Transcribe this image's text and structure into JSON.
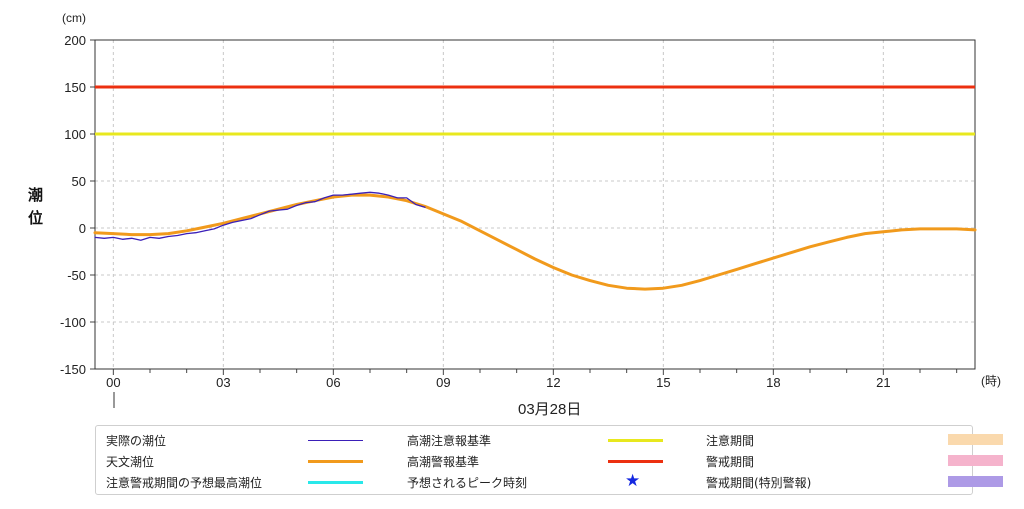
{
  "chart_data": {
    "type": "line",
    "ylabel": "潮位",
    "yunit": "(cm)",
    "xunit": "(時)",
    "ylim": [
      -150,
      200
    ],
    "yticks": [
      200,
      150,
      100,
      50,
      0,
      -50,
      -100,
      -150
    ],
    "xlim": [
      -0.5,
      23.5
    ],
    "xticks": [
      "00",
      "03",
      "06",
      "09",
      "12",
      "15",
      "18",
      "21"
    ],
    "date_label": "03月28日",
    "grid": true,
    "legend_position": "bottom",
    "thresholds": [
      {
        "name": "高潮注意報基準",
        "value": 100,
        "color": "#e8e81e"
      },
      {
        "name": "高潮警報基準",
        "value": 150,
        "color": "#ec3010"
      }
    ],
    "series": [
      {
        "name": "天文潮位",
        "color": "#f19a1c",
        "x": [
          -0.5,
          0,
          0.5,
          1,
          1.5,
          2,
          2.5,
          3,
          3.5,
          4,
          4.5,
          5,
          5.5,
          6,
          6.5,
          7,
          7.5,
          8,
          8.5,
          9,
          9.5,
          10,
          10.5,
          11,
          11.5,
          12,
          12.5,
          13,
          13.5,
          14,
          14.5,
          15,
          15.5,
          16,
          16.5,
          17,
          17.5,
          18,
          18.5,
          19,
          19.5,
          20,
          20.5,
          21,
          21.5,
          22,
          22.5,
          23,
          23.5
        ],
        "y": [
          -5,
          -6,
          -7,
          -7,
          -6,
          -3,
          1,
          5,
          10,
          15,
          20,
          25,
          29,
          33,
          35,
          35,
          33,
          29,
          23,
          15,
          7,
          -3,
          -13,
          -23,
          -33,
          -42,
          -50,
          -56,
          -61,
          -64,
          -65,
          -64,
          -61,
          -56,
          -50,
          -44,
          -38,
          -32,
          -26,
          -20,
          -15,
          -10,
          -6,
          -4,
          -2,
          -1,
          -1,
          -1,
          -2
        ]
      },
      {
        "name": "実際の潮位",
        "color": "#3a1fb8",
        "x": [
          -0.5,
          -0.25,
          0,
          0.25,
          0.5,
          0.75,
          1,
          1.25,
          1.5,
          1.75,
          2,
          2.25,
          2.5,
          2.75,
          3,
          3.25,
          3.5,
          3.75,
          4,
          4.25,
          4.5,
          4.75,
          5,
          5.25,
          5.5,
          5.75,
          6,
          6.25,
          6.5,
          6.75,
          7,
          7.25,
          7.5,
          7.75,
          8,
          8.25,
          8.5
        ],
        "y": [
          -10,
          -11,
          -10,
          -12,
          -11,
          -13,
          -10,
          -11,
          -9,
          -8,
          -6,
          -5,
          -3,
          -1,
          3,
          6,
          8,
          10,
          14,
          18,
          19,
          20,
          24,
          27,
          28,
          32,
          35,
          35,
          36,
          37,
          38,
          37,
          35,
          32,
          32,
          25,
          22
        ]
      }
    ],
    "legend": {
      "items": [
        {
          "label": "実際の潮位",
          "kind": "line",
          "color": "#3a1fb8"
        },
        {
          "label": "天文潮位",
          "kind": "line",
          "color": "#f19a1c"
        },
        {
          "label": "注意警戒期間の予想最高潮位",
          "kind": "line",
          "color": "#29e8ea"
        },
        {
          "label": "高潮注意報基準",
          "kind": "line",
          "color": "#e8e81e"
        },
        {
          "label": "高潮警報基準",
          "kind": "line",
          "color": "#ec3010"
        },
        {
          "label": "予想されるピーク時刻",
          "kind": "star",
          "color": "#1428e0",
          "symbol": "★"
        },
        {
          "label": "注意期間",
          "kind": "box",
          "color": "#fad9ad"
        },
        {
          "label": "警戒期間",
          "kind": "box",
          "color": "#f5b3cc"
        },
        {
          "label": "警戒期間(特別警報)",
          "kind": "box",
          "color": "#ad9ae6"
        }
      ]
    }
  }
}
